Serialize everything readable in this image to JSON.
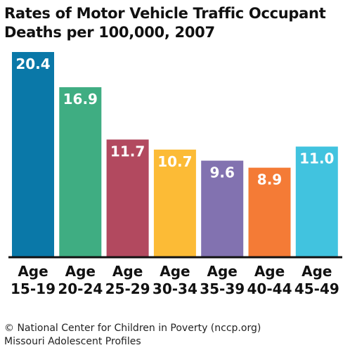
{
  "chart_data": {
    "type": "bar",
    "title_lines": [
      "Rates of Motor Vehicle Traffic Occupant",
      "Deaths per 100,000, 2007"
    ],
    "categories": [
      [
        "Age",
        "15-19"
      ],
      [
        "Age",
        "20-24"
      ],
      [
        "Age",
        "25-29"
      ],
      [
        "Age",
        "30-34"
      ],
      [
        "Age",
        "35-39"
      ],
      [
        "Age",
        "40-44"
      ],
      [
        "Age",
        "45-49"
      ]
    ],
    "values": [
      20.4,
      16.9,
      11.7,
      10.7,
      9.6,
      8.9,
      11.0
    ],
    "value_labels": [
      "20.4",
      "16.9",
      "11.7",
      "10.7",
      "9.6",
      "8.9",
      "11.0"
    ],
    "colors": [
      "#0a78a8",
      "#3fad82",
      "#b2495f",
      "#fcbb36",
      "#8272b0",
      "#f47b36",
      "#41c3df"
    ],
    "ylim": [
      0,
      20.4
    ],
    "grid": false,
    "legend": "none"
  },
  "footer": {
    "line1": "© National Center for Children in Poverty (nccp.org)",
    "line2": "Missouri Adolescent Profiles"
  }
}
